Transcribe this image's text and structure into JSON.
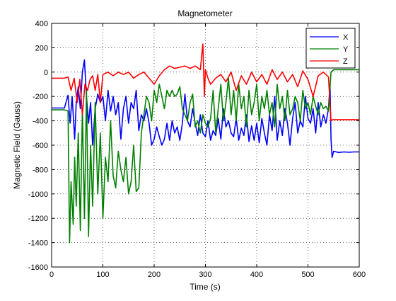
{
  "chart_data": {
    "type": "line",
    "title": "Magnetometer",
    "xlabel": "Time (s)",
    "ylabel": "Magnetic Field (Gauss)",
    "xlim": [
      0,
      600
    ],
    "ylim": [
      -1600,
      400
    ],
    "xticks": [
      0,
      100,
      200,
      300,
      400,
      500,
      600
    ],
    "yticks": [
      -1600,
      -1400,
      -1200,
      -1000,
      -800,
      -600,
      -400,
      -200,
      0,
      200,
      400
    ],
    "xtick_labels": [
      "0",
      "100",
      "200",
      "300",
      "400",
      "500",
      "600"
    ],
    "ytick_labels": [
      "-1600",
      "-1400",
      "-1200",
      "-1000",
      "-800",
      "-600",
      "-400",
      "-200",
      "0",
      "200",
      "400"
    ],
    "grid": true,
    "grid_style": "dotted",
    "legend_position": "top-right",
    "series": [
      {
        "name": "X",
        "color": "#0000ff",
        "x": [
          0,
          25,
          32,
          36,
          40,
          45,
          48,
          52,
          56,
          60,
          64,
          68,
          72,
          76,
          80,
          85,
          90,
          95,
          100,
          105,
          110,
          115,
          120,
          125,
          130,
          135,
          140,
          145,
          150,
          155,
          160,
          165,
          170,
          175,
          180,
          185,
          190,
          195,
          200,
          205,
          210,
          215,
          220,
          225,
          230,
          235,
          240,
          245,
          250,
          255,
          260,
          265,
          270,
          275,
          280,
          285,
          290,
          295,
          300,
          305,
          310,
          315,
          320,
          325,
          330,
          335,
          340,
          345,
          350,
          355,
          360,
          365,
          370,
          375,
          380,
          385,
          390,
          395,
          400,
          405,
          410,
          415,
          420,
          425,
          430,
          435,
          440,
          445,
          450,
          455,
          460,
          465,
          470,
          475,
          480,
          485,
          490,
          495,
          500,
          505,
          510,
          515,
          520,
          525,
          530,
          535,
          540,
          543,
          545,
          547,
          550,
          560,
          570,
          580,
          590,
          600
        ],
        "y": [
          -295,
          -295,
          -190,
          -420,
          -200,
          -550,
          -250,
          -120,
          -300,
          0,
          100,
          -200,
          -420,
          -250,
          -600,
          -300,
          -180,
          -250,
          -200,
          -400,
          -150,
          -320,
          -200,
          -350,
          -250,
          -550,
          -300,
          -200,
          -420,
          -250,
          -300,
          -150,
          -480,
          -350,
          -400,
          -300,
          -420,
          -600,
          -550,
          -450,
          -530,
          -600,
          -550,
          -420,
          -560,
          -400,
          -500,
          -450,
          -560,
          -420,
          -180,
          -400,
          -450,
          -300,
          -420,
          -520,
          -350,
          -500,
          -530,
          -400,
          -560,
          -480,
          -520,
          -380,
          -550,
          -300,
          -450,
          -400,
          -500,
          -530,
          -380,
          -560,
          -460,
          -520,
          -350,
          -570,
          -440,
          -560,
          -420,
          -580,
          -380,
          -500,
          -600,
          -350,
          -480,
          -200,
          -560,
          -400,
          -520,
          -300,
          -420,
          -600,
          -380,
          -250,
          -500,
          -400,
          -450,
          -200,
          -380,
          -420,
          -300,
          -500,
          -250,
          -450,
          -350,
          -420,
          -300,
          -100,
          -550,
          -700,
          -650,
          -660,
          -655,
          -658,
          -655,
          -655
        ]
      },
      {
        "name": "Y",
        "color": "#008000",
        "x": [
          0,
          25,
          32,
          35,
          38,
          42,
          45,
          48,
          52,
          56,
          60,
          64,
          68,
          72,
          76,
          80,
          85,
          90,
          95,
          100,
          105,
          110,
          115,
          120,
          125,
          130,
          135,
          140,
          145,
          150,
          155,
          160,
          165,
          170,
          175,
          180,
          185,
          190,
          195,
          200,
          205,
          210,
          215,
          220,
          225,
          230,
          235,
          240,
          245,
          250,
          255,
          260,
          265,
          270,
          275,
          280,
          285,
          290,
          295,
          300,
          305,
          310,
          315,
          320,
          325,
          330,
          335,
          340,
          345,
          350,
          355,
          360,
          365,
          370,
          375,
          380,
          385,
          390,
          395,
          400,
          405,
          410,
          415,
          420,
          425,
          430,
          435,
          440,
          445,
          450,
          455,
          460,
          465,
          470,
          475,
          480,
          485,
          490,
          495,
          500,
          505,
          510,
          515,
          520,
          525,
          530,
          535,
          540,
          545,
          550,
          560,
          570,
          580,
          590,
          600
        ],
        "y": [
          -310,
          -310,
          -320,
          -1400,
          -900,
          -1250,
          -700,
          -1100,
          -500,
          -1300,
          -300,
          -1200,
          -150,
          -1350,
          -600,
          -1100,
          -250,
          -1000,
          -500,
          -1200,
          -700,
          -900,
          -400,
          -850,
          -950,
          -650,
          -800,
          -900,
          -700,
          -1000,
          -900,
          -600,
          -980,
          -950,
          -500,
          -350,
          -200,
          -250,
          -400,
          -150,
          -250,
          -100,
          -200,
          -300,
          -150,
          -200,
          -150,
          -200,
          -180,
          -120,
          -300,
          -350,
          -400,
          -250,
          -180,
          -450,
          -400,
          -500,
          -350,
          -420,
          -450,
          -380,
          -150,
          -500,
          -300,
          -100,
          -400,
          -250,
          -50,
          -350,
          -150,
          -400,
          -100,
          -300,
          -200,
          -450,
          -150,
          -350,
          -250,
          -100,
          -400,
          -200,
          -300,
          -150,
          -350,
          -250,
          -450,
          -100,
          -300,
          -200,
          -400,
          -150,
          -350,
          -300,
          -200,
          -250,
          -400,
          -150,
          -300,
          -250,
          -350,
          -200,
          -280,
          -350,
          -250,
          -300,
          -280,
          -320,
          0,
          20,
          20,
          20,
          20,
          20,
          20
        ]
      },
      {
        "name": "Z",
        "color": "#ff0000",
        "x": [
          0,
          25,
          32,
          38,
          44,
          50,
          55,
          60,
          65,
          70,
          75,
          80,
          85,
          90,
          95,
          100,
          110,
          120,
          130,
          140,
          150,
          160,
          170,
          180,
          190,
          200,
          210,
          220,
          230,
          240,
          250,
          260,
          270,
          280,
          290,
          295,
          298,
          300,
          305,
          310,
          320,
          330,
          340,
          350,
          360,
          370,
          380,
          390,
          400,
          410,
          420,
          430,
          440,
          450,
          460,
          470,
          480,
          490,
          500,
          510,
          520,
          530,
          540,
          545,
          548,
          550,
          560,
          570,
          580,
          590,
          600
        ],
        "y": [
          -50,
          -50,
          -40,
          -150,
          -50,
          -250,
          -60,
          -350,
          -100,
          -150,
          -60,
          -30,
          -150,
          -20,
          -250,
          -20,
          0,
          -30,
          0,
          -20,
          0,
          -50,
          -20,
          0,
          -50,
          -100,
          -30,
          20,
          50,
          30,
          40,
          50,
          30,
          50,
          20,
          230,
          -200,
          20,
          -50,
          -100,
          -50,
          -20,
          -80,
          0,
          -150,
          -30,
          -100,
          0,
          -80,
          -20,
          -100,
          20,
          -60,
          0,
          -80,
          -20,
          -120,
          10,
          -60,
          -200,
          -30,
          0,
          -40,
          -400,
          -390,
          -390,
          -390,
          -390,
          -390,
          -390,
          -390
        ]
      }
    ]
  }
}
